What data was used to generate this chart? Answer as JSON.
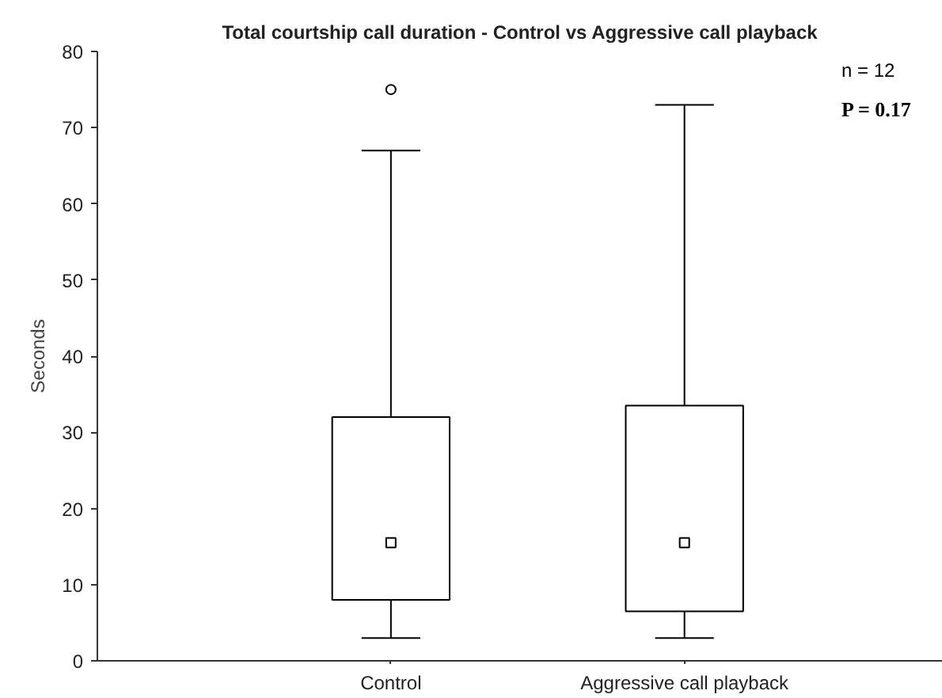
{
  "chart_data": {
    "type": "box",
    "title": "Total courtship call duration - Control vs Aggressive call playback",
    "ylabel": "Seconds",
    "categories": [
      "Control",
      "Aggressive call playback"
    ],
    "boxes": [
      {
        "low": 3,
        "q1": 8,
        "median": 15.5,
        "q3": 32,
        "high": 67,
        "outliers": [
          75
        ]
      },
      {
        "low": 3,
        "q1": 6.5,
        "median": 15.5,
        "q3": 33.5,
        "high": 73
      }
    ],
    "ylim": [
      0,
      80
    ],
    "yticks": [
      0,
      10,
      20,
      30,
      40,
      50,
      60,
      70,
      80
    ],
    "annotations": [
      "n = 12",
      "P = 0.17"
    ],
    "grid": false
  }
}
